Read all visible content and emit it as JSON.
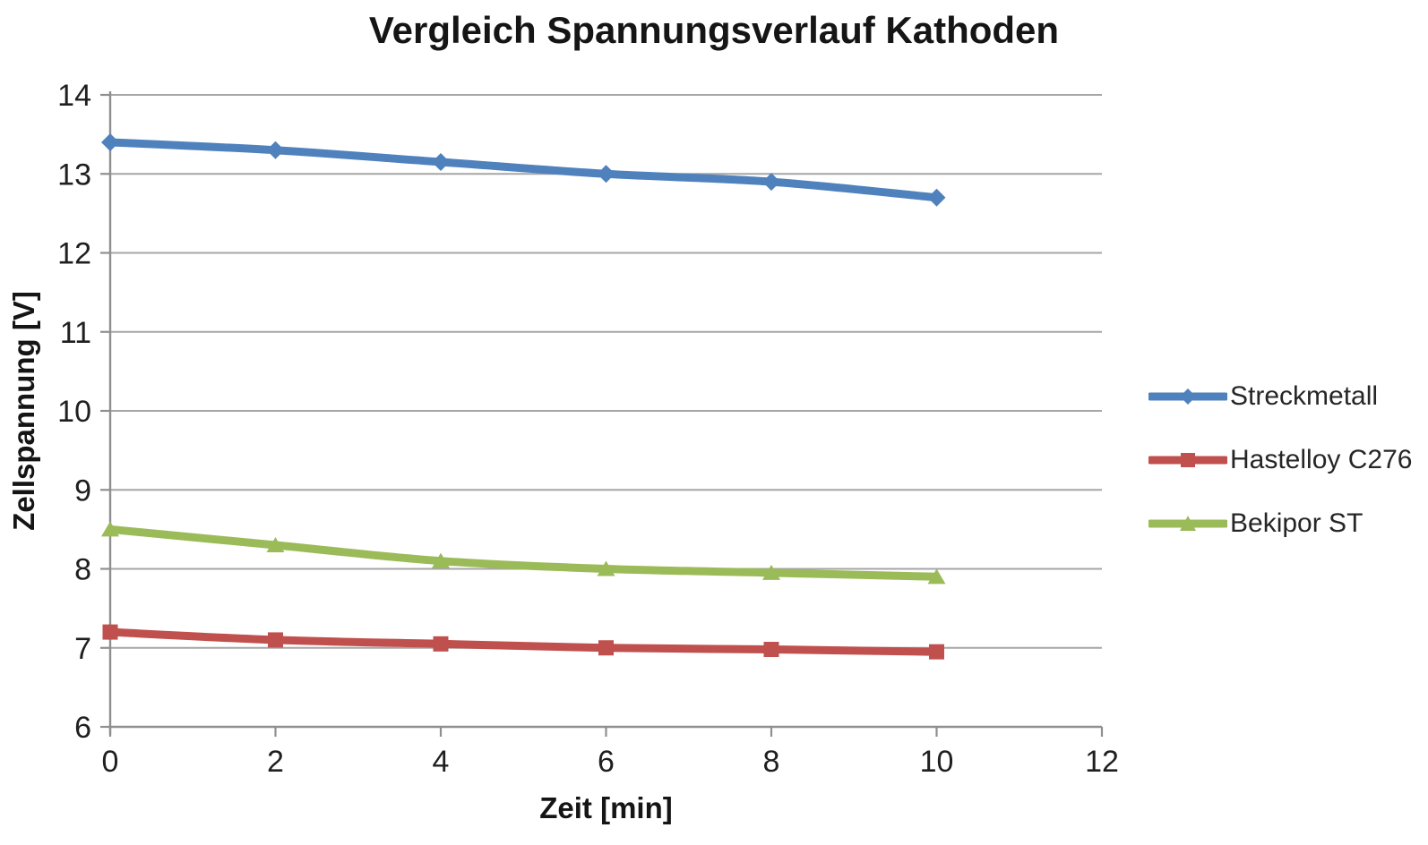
{
  "chart_data": {
    "type": "line",
    "title": "Vergleich Spannungsverlauf Kathoden",
    "xlabel": "Zeit [min]",
    "ylabel": "Zellspannung [V]",
    "x": [
      0,
      2,
      4,
      6,
      8,
      10
    ],
    "series": [
      {
        "name": "Streckmetall",
        "color": "#4F81BD",
        "marker": "diamond",
        "values": [
          13.4,
          13.3,
          13.15,
          13.0,
          12.9,
          12.7
        ]
      },
      {
        "name": "Hastelloy C276",
        "color": "#C0504D",
        "marker": "square",
        "values": [
          7.2,
          7.1,
          7.05,
          7.0,
          6.98,
          6.95
        ]
      },
      {
        "name": "Bekipor ST",
        "color": "#9BBB59",
        "marker": "triangle",
        "values": [
          8.5,
          8.3,
          8.1,
          8.0,
          7.95,
          7.9
        ]
      }
    ],
    "xlim": [
      0,
      12
    ],
    "ylim": [
      6,
      14
    ],
    "xticks": [
      0,
      2,
      4,
      6,
      8,
      10,
      12
    ],
    "yticks": [
      6,
      7,
      8,
      9,
      10,
      11,
      12,
      13,
      14
    ],
    "grid": "horizontal",
    "legend_position": "right",
    "smooth": true,
    "colors": {
      "grid": "#a6a6a6",
      "axis": "#8f8f8f",
      "tick_text": "#1f1f1f",
      "legend_text": "#262626",
      "background": "#ffffff"
    }
  }
}
